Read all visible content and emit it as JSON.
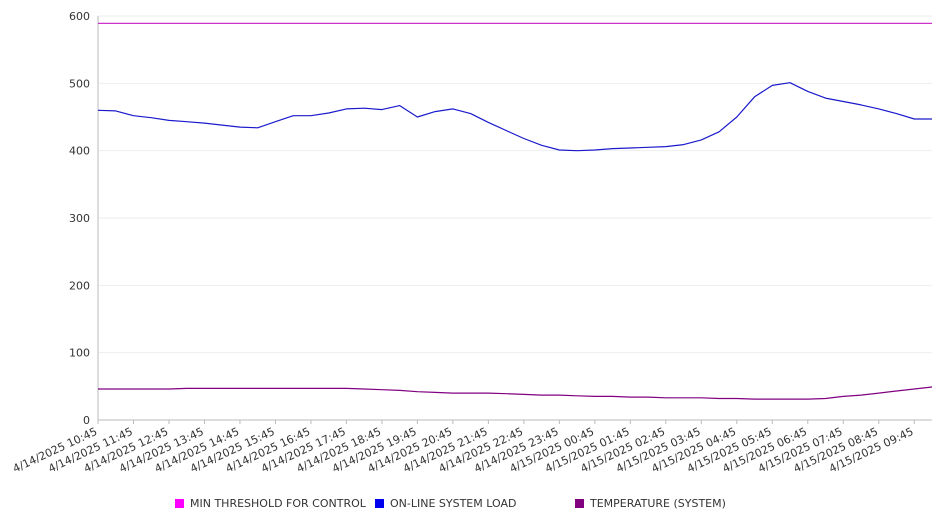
{
  "chart_data": {
    "type": "line",
    "title": "",
    "xlabel": "",
    "ylabel": "",
    "ylim": [
      0,
      600
    ],
    "y_ticks": [
      0,
      100,
      200,
      300,
      400,
      500,
      600
    ],
    "grid": "horizontal",
    "legend_placement": "bottom",
    "x_tick_labels": [
      "4/14/2025 10:45",
      "4/14/2025 11:45",
      "4/14/2025 12:45",
      "4/14/2025 13:45",
      "4/14/2025 14:45",
      "4/14/2025 15:45",
      "4/14/2025 16:45",
      "4/14/2025 17:45",
      "4/14/2025 18:45",
      "4/14/2025 19:45",
      "4/14/2025 20:45",
      "4/14/2025 21:45",
      "4/14/2025 22:45",
      "4/14/2025 23:45",
      "4/15/2025 00:45",
      "4/15/2025 01:45",
      "4/15/2025 02:45",
      "4/15/2025 03:45",
      "4/15/2025 04:45",
      "4/15/2025 05:45",
      "4/15/2025 06:45",
      "4/15/2025 07:45",
      "4/15/2025 08:45",
      "4/15/2025 09:45"
    ],
    "x": [
      "4/14/2025 10:45",
      "4/14/2025 11:15",
      "4/14/2025 11:45",
      "4/14/2025 12:15",
      "4/14/2025 12:45",
      "4/14/2025 13:15",
      "4/14/2025 13:45",
      "4/14/2025 14:15",
      "4/14/2025 14:45",
      "4/14/2025 15:15",
      "4/14/2025 15:45",
      "4/14/2025 16:15",
      "4/14/2025 16:45",
      "4/14/2025 17:15",
      "4/14/2025 17:45",
      "4/14/2025 18:15",
      "4/14/2025 18:45",
      "4/14/2025 19:15",
      "4/14/2025 19:45",
      "4/14/2025 20:15",
      "4/14/2025 20:45",
      "4/14/2025 21:15",
      "4/14/2025 21:45",
      "4/14/2025 22:15",
      "4/14/2025 22:45",
      "4/14/2025 23:15",
      "4/14/2025 23:45",
      "4/15/2025 00:15",
      "4/15/2025 00:45",
      "4/15/2025 01:15",
      "4/15/2025 01:45",
      "4/15/2025 02:15",
      "4/15/2025 02:45",
      "4/15/2025 03:15",
      "4/15/2025 03:45",
      "4/15/2025 04:15",
      "4/15/2025 04:45",
      "4/15/2025 05:15",
      "4/15/2025 05:45",
      "4/15/2025 06:15",
      "4/15/2025 06:45",
      "4/15/2025 07:15",
      "4/15/2025 07:45",
      "4/15/2025 08:15",
      "4/15/2025 08:45",
      "4/15/2025 09:15",
      "4/15/2025 09:45",
      "4/15/2025 10:15"
    ],
    "series": [
      {
        "name": "MIN THRESHOLD FOR CONTROL",
        "color": "#cc33cc",
        "values": [
          589,
          589,
          589,
          589,
          589,
          589,
          589,
          589,
          589,
          589,
          589,
          589,
          589,
          589,
          589,
          589,
          589,
          589,
          589,
          589,
          589,
          589,
          589,
          589,
          589,
          589,
          589,
          589,
          589,
          589,
          589,
          589,
          589,
          589,
          589,
          589,
          589,
          589,
          589,
          589,
          589,
          589,
          589,
          589,
          589,
          589,
          589,
          589
        ]
      },
      {
        "name": "ON-LINE SYSTEM LOAD",
        "color": "#1a1acc",
        "values": [
          460,
          459,
          452,
          449,
          445,
          443,
          441,
          438,
          435,
          434,
          443,
          452,
          452,
          456,
          462,
          463,
          461,
          467,
          450,
          458,
          462,
          455,
          442,
          430,
          418,
          408,
          401,
          400,
          401,
          403,
          404,
          405,
          406,
          409,
          416,
          428,
          450,
          480,
          497,
          501,
          488,
          478,
          473,
          468,
          462,
          455,
          447,
          447
        ]
      },
      {
        "name": "TEMPERATURE (SYSTEM)",
        "color": "#800080",
        "values": [
          46,
          46,
          46,
          46,
          46,
          47,
          47,
          47,
          47,
          47,
          47,
          47,
          47,
          47,
          47,
          46,
          45,
          44,
          42,
          41,
          40,
          40,
          40,
          39,
          38,
          37,
          37,
          36,
          35,
          35,
          34,
          34,
          33,
          33,
          33,
          32,
          32,
          31,
          31,
          31,
          31,
          32,
          35,
          37,
          40,
          43,
          46,
          49
        ]
      }
    ]
  }
}
